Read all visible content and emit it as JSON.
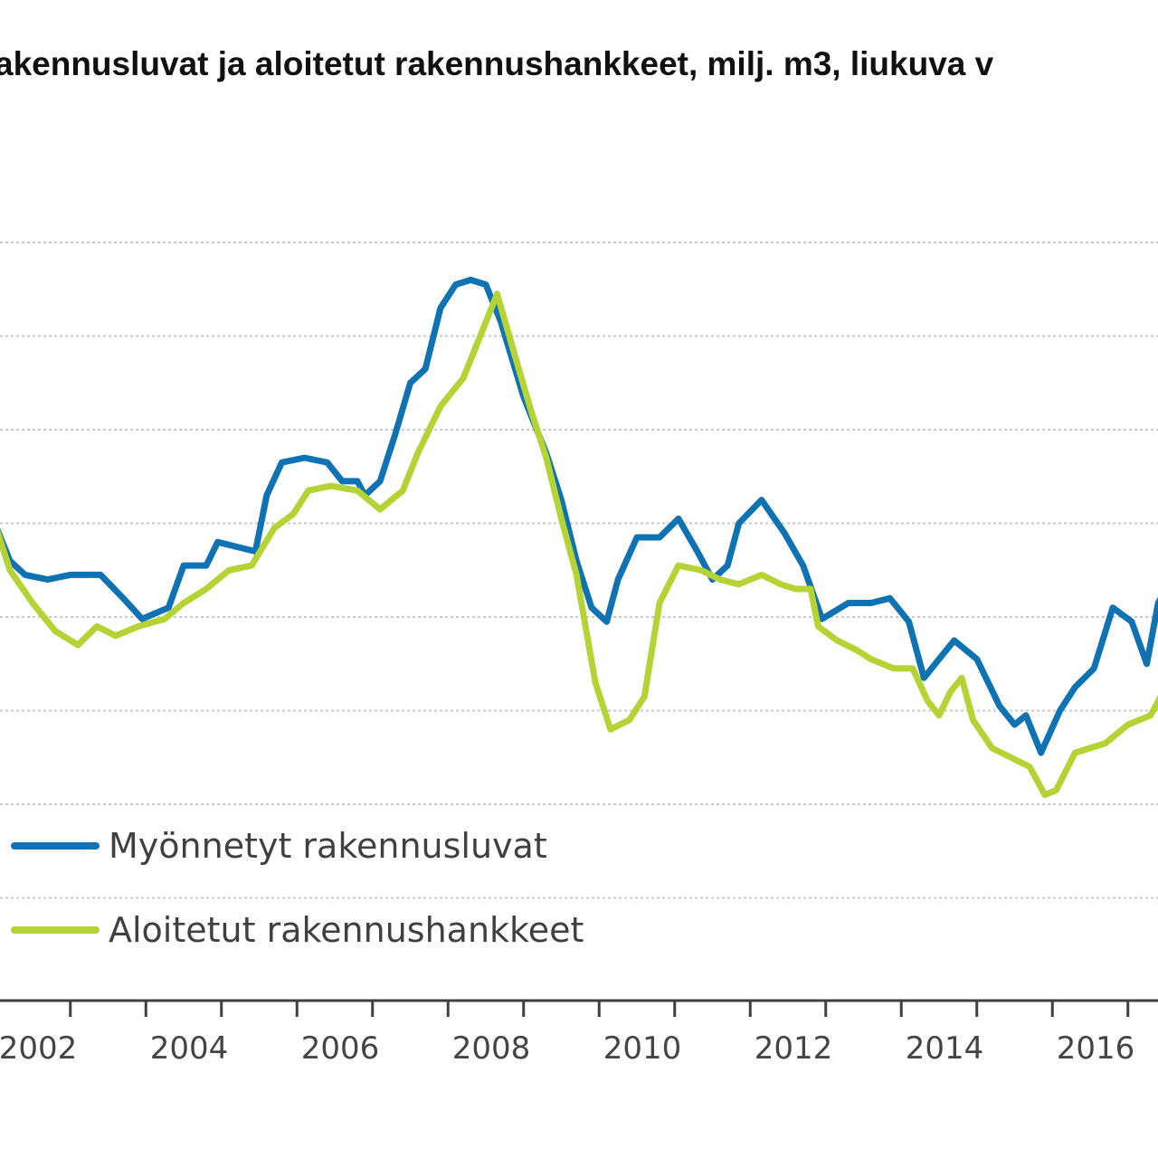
{
  "chart_data": {
    "type": "line",
    "title": "akennusluvat ja aloitetut rakennushankkeet, milj. m3, liukuva v",
    "xlabel": "",
    "ylabel": "",
    "x_tick_labels": [
      "2002",
      "2004",
      "2006",
      "2008",
      "2010",
      "2012",
      "2014",
      "2016"
    ],
    "x_range": [
      2001.5,
      2017.0
    ],
    "y_range_gridlines": 8,
    "grid": true,
    "legend_position": "bottom-left",
    "series": [
      {
        "name": "Myönnetyt rakennusluvat",
        "color": "#0f72b3",
        "points": [
          [
            2001.5,
            5.0
          ],
          [
            2001.7,
            4.6
          ],
          [
            2001.9,
            4.45
          ],
          [
            2002.2,
            4.4
          ],
          [
            2002.5,
            4.45
          ],
          [
            2002.9,
            4.45
          ],
          [
            2003.2,
            4.2
          ],
          [
            2003.45,
            3.98
          ],
          [
            2003.8,
            4.1
          ],
          [
            2004.0,
            4.55
          ],
          [
            2004.3,
            4.55
          ],
          [
            2004.45,
            4.8
          ],
          [
            2004.7,
            4.75
          ],
          [
            2004.95,
            4.7
          ],
          [
            2005.1,
            5.3
          ],
          [
            2005.3,
            5.65
          ],
          [
            2005.6,
            5.7
          ],
          [
            2005.9,
            5.65
          ],
          [
            2006.1,
            5.45
          ],
          [
            2006.3,
            5.45
          ],
          [
            2006.4,
            5.3
          ],
          [
            2006.6,
            5.45
          ],
          [
            2006.8,
            5.95
          ],
          [
            2007.0,
            6.5
          ],
          [
            2007.2,
            6.65
          ],
          [
            2007.4,
            7.3
          ],
          [
            2007.6,
            7.55
          ],
          [
            2007.8,
            7.6
          ],
          [
            2008.0,
            7.55
          ],
          [
            2008.2,
            7.15
          ],
          [
            2008.5,
            6.35
          ],
          [
            2008.8,
            5.75
          ],
          [
            2009.0,
            5.25
          ],
          [
            2009.2,
            4.6
          ],
          [
            2009.4,
            4.1
          ],
          [
            2009.6,
            3.95
          ],
          [
            2009.75,
            4.4
          ],
          [
            2010.0,
            4.85
          ],
          [
            2010.3,
            4.85
          ],
          [
            2010.55,
            5.05
          ],
          [
            2010.8,
            4.7
          ],
          [
            2011.0,
            4.4
          ],
          [
            2011.2,
            4.55
          ],
          [
            2011.35,
            5.0
          ],
          [
            2011.65,
            5.25
          ],
          [
            2011.95,
            4.9
          ],
          [
            2012.2,
            4.55
          ],
          [
            2012.45,
            3.98
          ],
          [
            2012.8,
            4.15
          ],
          [
            2013.1,
            4.15
          ],
          [
            2013.35,
            4.2
          ],
          [
            2013.6,
            3.95
          ],
          [
            2013.8,
            3.35
          ],
          [
            2014.0,
            3.55
          ],
          [
            2014.2,
            3.75
          ],
          [
            2014.5,
            3.55
          ],
          [
            2014.8,
            3.05
          ],
          [
            2015.0,
            2.85
          ],
          [
            2015.15,
            2.95
          ],
          [
            2015.35,
            2.55
          ],
          [
            2015.6,
            3.0
          ],
          [
            2015.8,
            3.25
          ],
          [
            2016.05,
            3.45
          ],
          [
            2016.3,
            4.1
          ],
          [
            2016.55,
            3.95
          ],
          [
            2016.75,
            3.5
          ],
          [
            2016.9,
            4.15
          ],
          [
            2017.0,
            4.3
          ]
        ]
      },
      {
        "name": "Aloitetut rakennushankkeet",
        "color": "#b5d334",
        "points": [
          [
            2001.5,
            5.0
          ],
          [
            2001.7,
            4.5
          ],
          [
            2002.0,
            4.15
          ],
          [
            2002.3,
            3.85
          ],
          [
            2002.6,
            3.7
          ],
          [
            2002.85,
            3.9
          ],
          [
            2003.1,
            3.8
          ],
          [
            2003.4,
            3.9
          ],
          [
            2003.75,
            3.98
          ],
          [
            2004.0,
            4.15
          ],
          [
            2004.3,
            4.3
          ],
          [
            2004.6,
            4.5
          ],
          [
            2004.9,
            4.55
          ],
          [
            2005.2,
            4.95
          ],
          [
            2005.45,
            5.1
          ],
          [
            2005.65,
            5.35
          ],
          [
            2005.95,
            5.4
          ],
          [
            2006.3,
            5.35
          ],
          [
            2006.6,
            5.15
          ],
          [
            2006.9,
            5.35
          ],
          [
            2007.1,
            5.75
          ],
          [
            2007.4,
            6.25
          ],
          [
            2007.7,
            6.55
          ],
          [
            2007.9,
            6.95
          ],
          [
            2008.15,
            7.45
          ],
          [
            2008.4,
            6.75
          ],
          [
            2008.6,
            6.2
          ],
          [
            2008.8,
            5.7
          ],
          [
            2009.0,
            5.05
          ],
          [
            2009.2,
            4.45
          ],
          [
            2009.45,
            3.3
          ],
          [
            2009.65,
            2.8
          ],
          [
            2009.9,
            2.9
          ],
          [
            2010.1,
            3.15
          ],
          [
            2010.3,
            4.15
          ],
          [
            2010.55,
            4.55
          ],
          [
            2010.85,
            4.5
          ],
          [
            2011.1,
            4.4
          ],
          [
            2011.35,
            4.35
          ],
          [
            2011.65,
            4.45
          ],
          [
            2011.9,
            4.35
          ],
          [
            2012.1,
            4.3
          ],
          [
            2012.3,
            4.3
          ],
          [
            2012.4,
            3.9
          ],
          [
            2012.65,
            3.75
          ],
          [
            2012.9,
            3.65
          ],
          [
            2013.1,
            3.55
          ],
          [
            2013.4,
            3.45
          ],
          [
            2013.65,
            3.45
          ],
          [
            2013.85,
            3.1
          ],
          [
            2014.0,
            2.95
          ],
          [
            2014.15,
            3.2
          ],
          [
            2014.3,
            3.35
          ],
          [
            2014.45,
            2.9
          ],
          [
            2014.7,
            2.6
          ],
          [
            2014.95,
            2.5
          ],
          [
            2015.2,
            2.4
          ],
          [
            2015.4,
            2.1
          ],
          [
            2015.55,
            2.15
          ],
          [
            2015.8,
            2.55
          ],
          [
            2016.0,
            2.6
          ],
          [
            2016.2,
            2.65
          ],
          [
            2016.5,
            2.85
          ],
          [
            2016.8,
            2.95
          ],
          [
            2017.0,
            3.25
          ]
        ]
      }
    ]
  }
}
